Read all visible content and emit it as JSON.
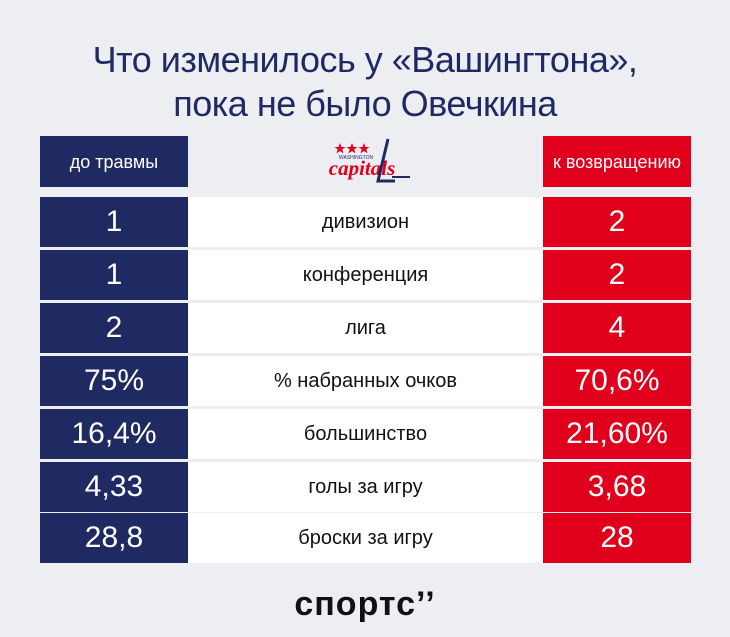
{
  "title": {
    "line1": "Что изменилось у «Вашингтона»,",
    "line2": "пока не было Овечкина"
  },
  "header": {
    "left_label": "до травмы",
    "right_label": "к возвращению",
    "logo_text": "capitals",
    "logo_subtext": "WASHINGTON"
  },
  "rows": [
    {
      "before": "1",
      "metric": "дивизион",
      "after": "2"
    },
    {
      "before": "1",
      "metric": "конференция",
      "after": "2"
    },
    {
      "before": "2",
      "metric": "лига",
      "after": "4"
    },
    {
      "before": "75%",
      "metric": "% набранных очков",
      "after": "70,6%"
    },
    {
      "before": "16,4%",
      "metric": "большинство",
      "after": "21,60%"
    },
    {
      "before": "4,33",
      "metric": "голы за игру",
      "after": "3,68"
    },
    {
      "before": "28,8",
      "metric": "броски за игру",
      "after": "28"
    }
  ],
  "brand": "спортс’’",
  "colors": {
    "navy": "#1f2a63",
    "red": "#e0001b",
    "background": "#eceef2"
  }
}
